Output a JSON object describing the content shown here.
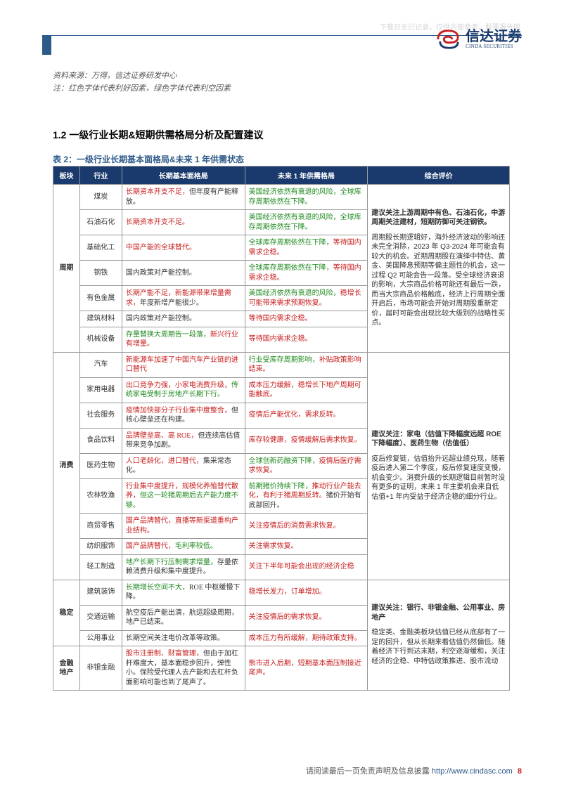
{
  "watermark": "下载日志已记录，仅供内部参考，股票报告网",
  "logo": {
    "cn": "信达证券",
    "en": "CINDA SECURITIES"
  },
  "source_label": "资料来源：",
  "source_value": "万得，信达证券研发中心",
  "note_label": "注：",
  "note_value": "红色字体代表利好因素，绿色字体代表利空因素",
  "section_title": "1.2 一级行业长期&短期供需格局分析及配置建议",
  "table_caption": "表 2：一级行业长期基本面格局&未来 1 年供需状态",
  "colors": {
    "header_bg": "#1a3a6e",
    "header_fg": "#ffffff",
    "accent": "#2e5a8a",
    "border": "#999999",
    "positive": "#c81e1e",
    "negative": "#1f8a1f",
    "body_text": "#333333",
    "pagenum": "#c81e1e"
  },
  "columns": [
    "板块",
    "行业",
    "长期基本面格局",
    "未来 1 年供需格局",
    "综合评价"
  ],
  "groups": [
    {
      "sector": "周期",
      "eval_bold": "建议关注上游周期中有色、石油石化，中游周期关注建材，短期防御可关注钢铁。",
      "eval_body": "周期股长期逻辑好，海外经济波动的影响还未完全消除，2023 年 Q3-2024 年可能会有较大的机会。近期周期股在演绎中特估、黄金、美国降息预期等偏主题性的机会，这一过程 Q2 可能会告一段落。受全球经济衰退的影响，大宗商品价格可能还有最后一跌，而当大宗商品价格触底，经济上行周期全面开启后，市场可能会开始对周期股重新定价，届时可能会出现比较大级别的战略性买点。",
      "rows": [
        {
          "industry": "煤炭",
          "c3": [
            {
              "t": "长期资本开支不足，",
              "c": "red"
            },
            {
              "t": "但年度有产能释放。",
              "c": ""
            }
          ],
          "c4": [
            {
              "t": "美国经济依然有衰退的风险，全球库存周期依然在下降。",
              "c": "green"
            }
          ]
        },
        {
          "industry": "石油石化",
          "c3": [
            {
              "t": "长期资本开支不足。",
              "c": "red"
            }
          ],
          "c4": [
            {
              "t": "美国经济依然有衰退的风险，全球库存周期依然在下降。",
              "c": "green"
            }
          ]
        },
        {
          "industry": "基础化工",
          "c3": [
            {
              "t": "中国产能的全球替代。",
              "c": "red"
            }
          ],
          "c4": [
            {
              "t": "全球库存周期依然在下降，",
              "c": "green"
            },
            {
              "t": "等待国内需求企稳。",
              "c": "red"
            }
          ]
        },
        {
          "industry": "钢铁",
          "c3": [
            {
              "t": "国内政策对产能控制。",
              "c": ""
            }
          ],
          "c4": [
            {
              "t": "全球库存周期依然在下降，",
              "c": "green"
            },
            {
              "t": "等待国内需求企稳。",
              "c": "red"
            }
          ]
        },
        {
          "industry": "有色金属",
          "c3": [
            {
              "t": "长期产能不足，新能源带来增量需求，",
              "c": "red"
            },
            {
              "t": "年度新增产能很少。",
              "c": ""
            }
          ],
          "c4": [
            {
              "t": "美国经济依然有衰退的风险，",
              "c": "green"
            },
            {
              "t": "稳增长可能带来需求预期恢复。",
              "c": "red"
            }
          ]
        },
        {
          "industry": "建筑材料",
          "c3": [
            {
              "t": "国内政策对产能控制。",
              "c": ""
            }
          ],
          "c4": [
            {
              "t": "等待国内需求企稳。",
              "c": "red"
            }
          ]
        },
        {
          "industry": "机械设备",
          "c3": [
            {
              "t": "存量替换大周期告一段落，",
              "c": "green"
            },
            {
              "t": "新兴行业有增量。",
              "c": "red"
            }
          ],
          "c4": [
            {
              "t": "等待国内需求企稳。",
              "c": "red"
            }
          ]
        }
      ]
    },
    {
      "sector": "消费",
      "eval_bold": "建议关注：家电（估值下降幅度远超 ROE 下降幅度）、医药生物（估值低）",
      "eval_body": "疫后修复链，估值抬升远超业绩兑现，随着疫后进入第二个季度，疫后修复速度变慢，机会变少。消费升级的长期逻辑目前暂时没有更多的证明，未来 1 年主要机会来自低估值+1 年内受益于经济企稳的细分行业。",
      "rows": [
        {
          "industry": "汽车",
          "c3": [
            {
              "t": "新能源车加速了中国汽车产业链的进口替代",
              "c": "red"
            }
          ],
          "c4": [
            {
              "t": "行业受库存周期影响，",
              "c": "green"
            },
            {
              "t": "补贴政策影响结束。",
              "c": "red"
            }
          ]
        },
        {
          "industry": "家用电器",
          "c3": [
            {
              "t": "出口竞争力强，小家电消费升级，",
              "c": "red"
            },
            {
              "t": "传统家电受制于房地产长期下行。",
              "c": "green"
            }
          ],
          "c4": [
            {
              "t": "成本压力缓解，稳增长下地产周期可能触底。",
              "c": "red"
            }
          ]
        },
        {
          "industry": "社会服务",
          "c3": [
            {
              "t": "疫情加快部分子行业集中度整合，",
              "c": "red"
            },
            {
              "t": "但核心壁垒还在构建。",
              "c": ""
            }
          ],
          "c4": [
            {
              "t": "疫情后产能优化，需求反转。",
              "c": "red"
            }
          ]
        },
        {
          "industry": "食品饮料",
          "c3": [
            {
              "t": "品牌壁垒高、高 ROE，",
              "c": "red"
            },
            {
              "t": "但连续高估值带来竞争加剧。",
              "c": ""
            }
          ],
          "c4": [
            {
              "t": "库存较健康，疫情缓解后需求恢复。",
              "c": "red"
            }
          ]
        },
        {
          "industry": "医药生物",
          "c3": [
            {
              "t": "人口老龄化，进口替代，",
              "c": "red"
            },
            {
              "t": "集采常态化。",
              "c": ""
            }
          ],
          "c4": [
            {
              "t": "全球创新药融资下降，",
              "c": "green"
            },
            {
              "t": "疫情后医疗需求恢复。",
              "c": "red"
            }
          ]
        },
        {
          "industry": "农林牧渔",
          "c3": [
            {
              "t": "行业集中度提升，规模化养殖替代散养，",
              "c": "red"
            },
            {
              "t": "但这一轮猪周期后去产能力度不够。",
              "c": "green"
            }
          ],
          "c4": [
            {
              "t": "前期猪价持续下降，",
              "c": "green"
            },
            {
              "t": "推动行业产能去化，有利于猪周期反转。",
              "c": "red"
            },
            {
              "t": "猪价开始有底部回升。",
              "c": ""
            }
          ]
        },
        {
          "industry": "商贸零售",
          "c3": [
            {
              "t": "国产品牌替代，直播等新渠道重构产业结构。",
              "c": "red"
            }
          ],
          "c4": [
            {
              "t": "关注疫情后的消费需求恢复。",
              "c": "red"
            }
          ]
        },
        {
          "industry": "纺织服饰",
          "c3": [
            {
              "t": "国产品牌替代，",
              "c": "red"
            },
            {
              "t": "毛利率较低。",
              "c": "green"
            }
          ],
          "c4": [
            {
              "t": "关注需求恢复。",
              "c": "red"
            }
          ]
        },
        {
          "industry": "轻工制造",
          "c3": [
            {
              "t": "地产长期下行压制需求增量，",
              "c": "green"
            },
            {
              "t": "存量依赖消费升级和集中度提升。",
              "c": ""
            }
          ],
          "c4": [
            {
              "t": "关注下半年可能会出现的经济企稳",
              "c": "red"
            }
          ]
        }
      ]
    },
    {
      "sector": "稳定",
      "eval_bold": "建议关注：银行、非银金融、公用事业、房地产",
      "eval_body": "稳定类、金融类板块估值已经从底部有了一定的回升，但从长期来看估值仍然偏低。随着经济下行到达末期，利空逐渐缓和，关注经济的企稳、中特估政策推进、股市流动",
      "rows": [
        {
          "industry": "建筑装饰",
          "c3": [
            {
              "t": "长期增长空间不大，",
              "c": "green"
            },
            {
              "t": "ROE 中枢缓慢下降。",
              "c": ""
            }
          ],
          "c4": [
            {
              "t": "稳增长发力，订单增加。",
              "c": "red"
            }
          ]
        },
        {
          "industry": "交通运输",
          "c3": [
            {
              "t": "航空疫后产能出清，航运超级周期，地产已结束。",
              "c": ""
            }
          ],
          "c4": [
            {
              "t": "关注疫情后的需求恢复。",
              "c": "red"
            }
          ]
        },
        {
          "industry": "公用事业",
          "c3": [
            {
              "t": "长期空间关注电价改革等政策。",
              "c": ""
            }
          ],
          "c4": [
            {
              "t": "成本压力有所缓解，期待政策支持。",
              "c": "red"
            }
          ]
        }
      ]
    },
    {
      "sector": "金融地产",
      "merge_eval_with_prev": true,
      "rows": [
        {
          "industry": "非银金融",
          "c3": [
            {
              "t": "股市注册制、财富管理，",
              "c": "red"
            },
            {
              "t": "但由于加杠杆难度大，基本面稳步回升，弹性小。保险受代理人去产能和去杠杆负面影响可能也到了尾声了。",
              "c": ""
            }
          ],
          "c4": [
            {
              "t": "熊市进入后期，短期基本面压制接近尾声。",
              "c": "red"
            }
          ]
        }
      ]
    }
  ],
  "footer": {
    "prefix": "请阅读最后一页免责声明及信息披露 ",
    "url": "http://www.cindasc.com",
    "page": "8"
  }
}
